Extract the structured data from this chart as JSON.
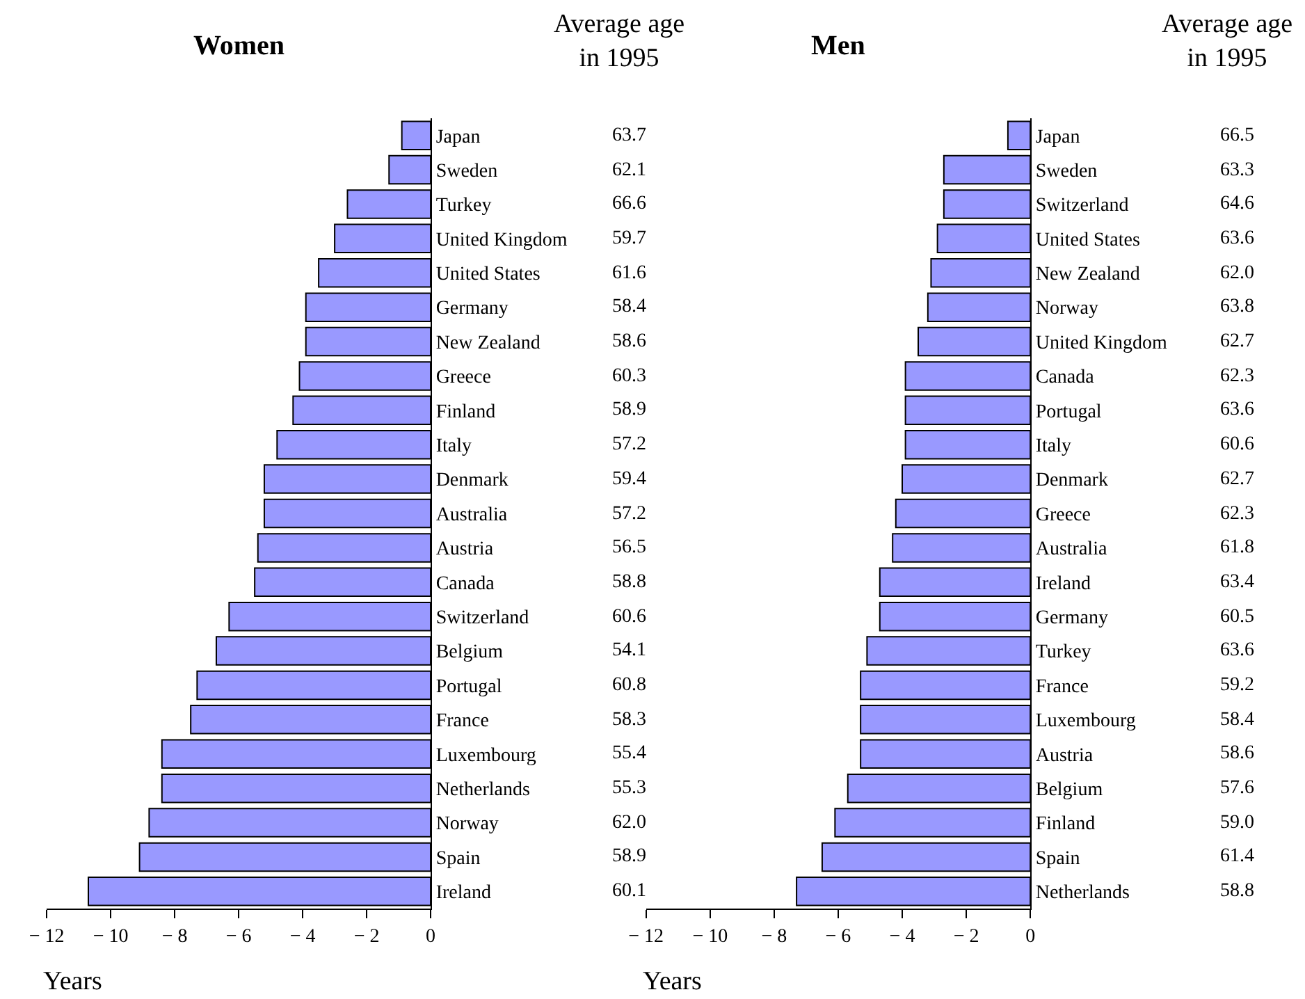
{
  "chart_data": [
    {
      "type": "bar",
      "orientation": "horizontal",
      "title": "Women",
      "xlabel": "Years",
      "color": "#9999ff",
      "xlim": [
        -12,
        0
      ],
      "xticks": [
        -12,
        -10,
        -8,
        -6,
        -4,
        -2,
        0
      ],
      "categories": [
        "Japan",
        "Sweden",
        "Turkey",
        "United Kingdom",
        "United States",
        "Germany",
        "New Zealand",
        "Greece",
        "Finland",
        "Italy",
        "Denmark",
        "Australia",
        "Austria",
        "Canada",
        "Switzerland",
        "Belgium",
        "Portugal",
        "France",
        "Luxembourg",
        "Netherlands",
        "Norway",
        "Spain",
        "Ireland"
      ],
      "values": [
        -0.9,
        -1.3,
        -2.6,
        -3.0,
        -3.5,
        -3.9,
        -3.9,
        -4.1,
        -4.3,
        -4.8,
        -5.2,
        -5.2,
        -5.4,
        -5.5,
        -6.3,
        -6.7,
        -7.3,
        -7.5,
        -8.4,
        -8.4,
        -8.8,
        -9.1,
        -10.7
      ],
      "annotations": [
        "Average age in 1995",
        "63.7",
        "62.1",
        "66.6",
        "59.7",
        "61.6",
        "58.4",
        "58.6",
        "60.3",
        "58.9",
        "57.2",
        "59.4",
        "57.2",
        "56.5",
        "58.8",
        "60.6",
        "54.1",
        "60.8",
        "58.3",
        "55.4",
        "55.3",
        "62.0",
        "58.9",
        "60.1"
      ]
    },
    {
      "type": "bar",
      "orientation": "horizontal",
      "title": "Men",
      "xlabel": "Years",
      "color": "#9999ff",
      "xlim": [
        -12,
        0
      ],
      "xticks": [
        -12,
        -10,
        -8,
        -6,
        -4,
        -2,
        0
      ],
      "categories": [
        "Japan",
        "Sweden",
        "Switzerland",
        "United States",
        "New Zealand",
        "Norway",
        "United Kingdom",
        "Canada",
        "Portugal",
        "Italy",
        "Denmark",
        "Greece",
        "Australia",
        "Ireland",
        "Germany",
        "Turkey",
        "France",
        "Luxembourg",
        "Austria",
        "Belgium",
        "Finland",
        "Spain",
        "Netherlands"
      ],
      "values": [
        -0.7,
        -2.7,
        -2.7,
        -2.9,
        -3.1,
        -3.2,
        -3.5,
        -3.9,
        -3.9,
        -3.9,
        -4.0,
        -4.2,
        -4.3,
        -4.7,
        -4.7,
        -5.1,
        -5.3,
        -5.3,
        -5.3,
        -5.7,
        -6.1,
        -6.5,
        -7.3
      ],
      "annotations": [
        "Average age in 1995",
        "66.5",
        "63.3",
        "64.6",
        "63.6",
        "62.0",
        "63.8",
        "62.7",
        "62.3",
        "63.6",
        "60.6",
        "62.7",
        "62.3",
        "61.8",
        "63.4",
        "60.5",
        "63.6",
        "59.2",
        "58.4",
        "58.6",
        "57.6",
        "59.0",
        "61.4",
        "58.8"
      ]
    }
  ]
}
